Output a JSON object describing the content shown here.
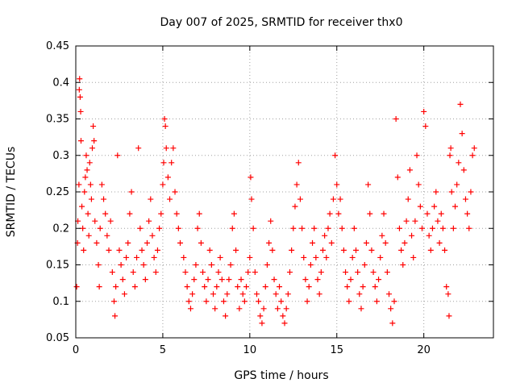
{
  "chart_data": {
    "type": "scatter",
    "title": "Day 007 of 2025, SRMTID for receiver thx0",
    "xlabel": "GPS time / hours",
    "ylabel": "SRMTID / TECUs",
    "xlim": [
      0,
      24
    ],
    "ylim": [
      0.05,
      0.45
    ],
    "xticks": [
      0,
      5,
      10,
      15,
      20
    ],
    "xtick_labels": [
      "0",
      "5",
      "10",
      "15",
      "20"
    ],
    "yticks": [
      0.05,
      0.1,
      0.15,
      0.2,
      0.25,
      0.3,
      0.35,
      0.4,
      0.45
    ],
    "ytick_labels": [
      "0.05",
      "0.1",
      "0.15",
      "0.2",
      "0.25",
      "0.3",
      "0.35",
      "0.4",
      "0.45"
    ],
    "grid": true,
    "marker": "+",
    "marker_color": "#ff0000",
    "series": [
      {
        "points": [
          [
            0.05,
            0.12
          ],
          [
            0.1,
            0.18
          ],
          [
            0.12,
            0.21
          ],
          [
            0.18,
            0.26
          ],
          [
            0.2,
            0.39
          ],
          [
            0.22,
            0.405
          ],
          [
            0.25,
            0.38
          ],
          [
            0.28,
            0.36
          ],
          [
            0.3,
            0.32
          ],
          [
            0.35,
            0.23
          ],
          [
            0.4,
            0.2
          ],
          [
            0.45,
            0.17
          ],
          [
            0.5,
            0.25
          ],
          [
            0.55,
            0.27
          ],
          [
            0.6,
            0.3
          ],
          [
            0.65,
            0.28
          ],
          [
            0.7,
            0.22
          ],
          [
            0.75,
            0.19
          ],
          [
            0.8,
            0.29
          ],
          [
            0.85,
            0.26
          ],
          [
            0.9,
            0.24
          ],
          [
            0.95,
            0.31
          ],
          [
            1.0,
            0.34
          ],
          [
            1.05,
            0.32
          ],
          [
            1.1,
            0.21
          ],
          [
            1.2,
            0.18
          ],
          [
            1.3,
            0.15
          ],
          [
            1.35,
            0.12
          ],
          [
            1.4,
            0.2
          ],
          [
            1.5,
            0.26
          ],
          [
            1.6,
            0.24
          ],
          [
            1.7,
            0.22
          ],
          [
            1.8,
            0.19
          ],
          [
            1.9,
            0.17
          ],
          [
            2.0,
            0.21
          ],
          [
            2.1,
            0.14
          ],
          [
            2.2,
            0.1
          ],
          [
            2.25,
            0.08
          ],
          [
            2.3,
            0.12
          ],
          [
            2.4,
            0.3
          ],
          [
            2.5,
            0.17
          ],
          [
            2.6,
            0.15
          ],
          [
            2.7,
            0.13
          ],
          [
            2.8,
            0.11
          ],
          [
            2.9,
            0.16
          ],
          [
            3.0,
            0.18
          ],
          [
            3.1,
            0.22
          ],
          [
            3.2,
            0.25
          ],
          [
            3.3,
            0.14
          ],
          [
            3.4,
            0.12
          ],
          [
            3.5,
            0.16
          ],
          [
            3.6,
            0.31
          ],
          [
            3.7,
            0.2
          ],
          [
            3.8,
            0.17
          ],
          [
            3.9,
            0.15
          ],
          [
            4.0,
            0.13
          ],
          [
            4.1,
            0.18
          ],
          [
            4.2,
            0.21
          ],
          [
            4.3,
            0.24
          ],
          [
            4.4,
            0.19
          ],
          [
            4.5,
            0.16
          ],
          [
            4.6,
            0.14
          ],
          [
            4.7,
            0.17
          ],
          [
            4.8,
            0.2
          ],
          [
            4.9,
            0.22
          ],
          [
            5.0,
            0.26
          ],
          [
            5.05,
            0.29
          ],
          [
            5.1,
            0.35
          ],
          [
            5.15,
            0.34
          ],
          [
            5.2,
            0.31
          ],
          [
            5.3,
            0.27
          ],
          [
            5.4,
            0.24
          ],
          [
            5.5,
            0.29
          ],
          [
            5.6,
            0.31
          ],
          [
            5.7,
            0.25
          ],
          [
            5.8,
            0.22
          ],
          [
            5.9,
            0.2
          ],
          [
            6.0,
            0.18
          ],
          [
            6.2,
            0.16
          ],
          [
            6.3,
            0.14
          ],
          [
            6.4,
            0.12
          ],
          [
            6.5,
            0.1
          ],
          [
            6.6,
            0.09
          ],
          [
            6.7,
            0.11
          ],
          [
            6.8,
            0.13
          ],
          [
            6.9,
            0.15
          ],
          [
            7.0,
            0.2
          ],
          [
            7.1,
            0.22
          ],
          [
            7.2,
            0.18
          ],
          [
            7.3,
            0.14
          ],
          [
            7.4,
            0.12
          ],
          [
            7.5,
            0.1
          ],
          [
            7.6,
            0.13
          ],
          [
            7.7,
            0.17
          ],
          [
            7.8,
            0.15
          ],
          [
            7.9,
            0.11
          ],
          [
            8.0,
            0.09
          ],
          [
            8.1,
            0.12
          ],
          [
            8.2,
            0.14
          ],
          [
            8.3,
            0.16
          ],
          [
            8.4,
            0.13
          ],
          [
            8.5,
            0.1
          ],
          [
            8.6,
            0.08
          ],
          [
            8.7,
            0.11
          ],
          [
            8.8,
            0.13
          ],
          [
            8.9,
            0.15
          ],
          [
            9.0,
            0.2
          ],
          [
            9.1,
            0.22
          ],
          [
            9.2,
            0.17
          ],
          [
            9.3,
            0.12
          ],
          [
            9.4,
            0.09
          ],
          [
            9.5,
            0.13
          ],
          [
            9.6,
            0.11
          ],
          [
            9.7,
            0.1
          ],
          [
            9.8,
            0.12
          ],
          [
            9.9,
            0.14
          ],
          [
            10.0,
            0.16
          ],
          [
            10.05,
            0.27
          ],
          [
            10.1,
            0.24
          ],
          [
            10.2,
            0.2
          ],
          [
            10.3,
            0.14
          ],
          [
            10.4,
            0.11
          ],
          [
            10.5,
            0.1
          ],
          [
            10.6,
            0.08
          ],
          [
            10.7,
            0.07
          ],
          [
            10.8,
            0.09
          ],
          [
            10.9,
            0.12
          ],
          [
            11.0,
            0.15
          ],
          [
            11.1,
            0.18
          ],
          [
            11.2,
            0.21
          ],
          [
            11.3,
            0.17
          ],
          [
            11.4,
            0.13
          ],
          [
            11.5,
            0.11
          ],
          [
            11.6,
            0.09
          ],
          [
            11.7,
            0.12
          ],
          [
            11.8,
            0.1
          ],
          [
            11.9,
            0.08
          ],
          [
            12.0,
            0.07
          ],
          [
            12.1,
            0.09
          ],
          [
            12.2,
            0.11
          ],
          [
            12.3,
            0.14
          ],
          [
            12.4,
            0.17
          ],
          [
            12.5,
            0.2
          ],
          [
            12.6,
            0.23
          ],
          [
            12.7,
            0.26
          ],
          [
            12.8,
            0.29
          ],
          [
            12.9,
            0.24
          ],
          [
            13.0,
            0.2
          ],
          [
            13.1,
            0.16
          ],
          [
            13.2,
            0.13
          ],
          [
            13.3,
            0.1
          ],
          [
            13.4,
            0.12
          ],
          [
            13.5,
            0.15
          ],
          [
            13.6,
            0.18
          ],
          [
            13.7,
            0.2
          ],
          [
            13.8,
            0.16
          ],
          [
            13.9,
            0.13
          ],
          [
            14.0,
            0.11
          ],
          [
            14.1,
            0.14
          ],
          [
            14.2,
            0.17
          ],
          [
            14.3,
            0.19
          ],
          [
            14.4,
            0.16
          ],
          [
            14.5,
            0.2
          ],
          [
            14.6,
            0.22
          ],
          [
            14.7,
            0.18
          ],
          [
            14.8,
            0.24
          ],
          [
            14.9,
            0.3
          ],
          [
            15.0,
            0.26
          ],
          [
            15.1,
            0.22
          ],
          [
            15.2,
            0.24
          ],
          [
            15.3,
            0.2
          ],
          [
            15.4,
            0.17
          ],
          [
            15.5,
            0.14
          ],
          [
            15.6,
            0.12
          ],
          [
            15.7,
            0.1
          ],
          [
            15.8,
            0.13
          ],
          [
            15.9,
            0.16
          ],
          [
            16.0,
            0.2
          ],
          [
            16.1,
            0.17
          ],
          [
            16.2,
            0.14
          ],
          [
            16.3,
            0.11
          ],
          [
            16.4,
            0.09
          ],
          [
            16.5,
            0.12
          ],
          [
            16.6,
            0.15
          ],
          [
            16.7,
            0.18
          ],
          [
            16.8,
            0.26
          ],
          [
            16.9,
            0.22
          ],
          [
            17.0,
            0.17
          ],
          [
            17.1,
            0.14
          ],
          [
            17.2,
            0.12
          ],
          [
            17.3,
            0.1
          ],
          [
            17.4,
            0.13
          ],
          [
            17.5,
            0.16
          ],
          [
            17.6,
            0.19
          ],
          [
            17.7,
            0.22
          ],
          [
            17.8,
            0.18
          ],
          [
            17.9,
            0.14
          ],
          [
            18.0,
            0.11
          ],
          [
            18.1,
            0.09
          ],
          [
            18.2,
            0.07
          ],
          [
            18.3,
            0.1
          ],
          [
            18.4,
            0.35
          ],
          [
            18.5,
            0.27
          ],
          [
            18.6,
            0.2
          ],
          [
            18.7,
            0.17
          ],
          [
            18.8,
            0.15
          ],
          [
            18.9,
            0.18
          ],
          [
            19.0,
            0.21
          ],
          [
            19.1,
            0.24
          ],
          [
            19.2,
            0.28
          ],
          [
            19.3,
            0.19
          ],
          [
            19.4,
            0.16
          ],
          [
            19.5,
            0.21
          ],
          [
            19.6,
            0.3
          ],
          [
            19.7,
            0.26
          ],
          [
            19.8,
            0.23
          ],
          [
            19.9,
            0.2
          ],
          [
            20.0,
            0.36
          ],
          [
            20.1,
            0.34
          ],
          [
            20.2,
            0.22
          ],
          [
            20.3,
            0.19
          ],
          [
            20.4,
            0.17
          ],
          [
            20.5,
            0.2
          ],
          [
            20.6,
            0.23
          ],
          [
            20.7,
            0.25
          ],
          [
            20.8,
            0.21
          ],
          [
            20.9,
            0.18
          ],
          [
            21.0,
            0.22
          ],
          [
            21.1,
            0.2
          ],
          [
            21.2,
            0.17
          ],
          [
            21.3,
            0.12
          ],
          [
            21.4,
            0.11
          ],
          [
            21.45,
            0.08
          ],
          [
            21.5,
            0.3
          ],
          [
            21.55,
            0.31
          ],
          [
            21.6,
            0.25
          ],
          [
            21.7,
            0.2
          ],
          [
            21.8,
            0.23
          ],
          [
            21.9,
            0.26
          ],
          [
            22.0,
            0.29
          ],
          [
            22.1,
            0.37
          ],
          [
            22.2,
            0.33
          ],
          [
            22.3,
            0.28
          ],
          [
            22.4,
            0.24
          ],
          [
            22.5,
            0.22
          ],
          [
            22.6,
            0.2
          ],
          [
            22.7,
            0.25
          ],
          [
            22.8,
            0.3
          ],
          [
            22.9,
            0.31
          ]
        ]
      }
    ]
  }
}
